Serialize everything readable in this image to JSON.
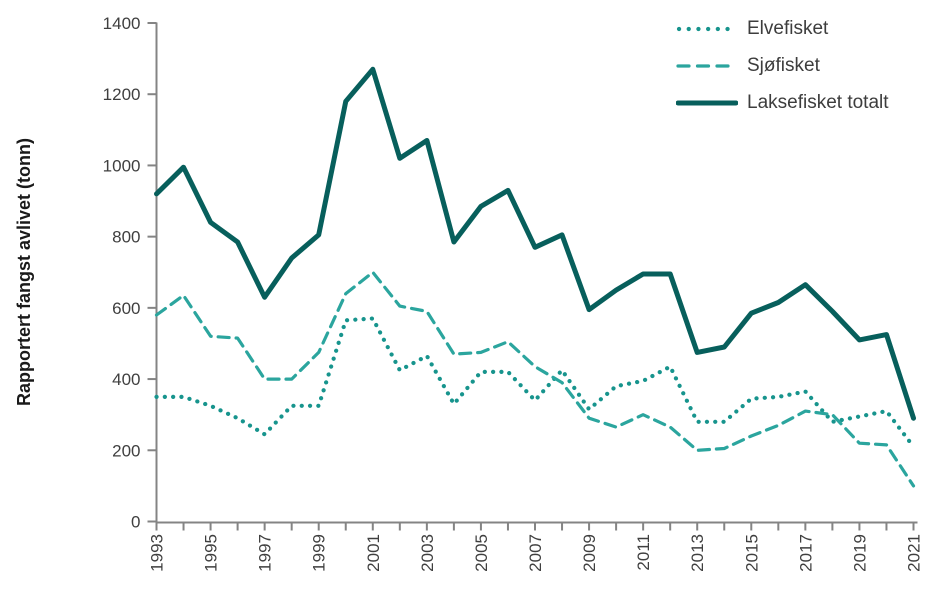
{
  "figure": {
    "y_axis_title": "Rapportert fangst avlivet (tonn)"
  },
  "colors": {
    "elvefisket": "#17948d",
    "sjofisket": "#2ba59e",
    "total": "#075f5c",
    "axis": "#848484",
    "tick_text": "#3f3f3f",
    "legend_text": "#3d3d3d"
  },
  "chart_data": {
    "type": "line",
    "title": "",
    "xlabel": "",
    "ylabel": "Rapportert fangst avlivet (tonn)",
    "ylim": [
      0,
      1400
    ],
    "y_ticks": [
      0,
      200,
      400,
      600,
      800,
      1000,
      1200,
      1400
    ],
    "grid": false,
    "legend_position": "top-right",
    "x": [
      1993,
      1994,
      1995,
      1996,
      1997,
      1998,
      1999,
      2000,
      2001,
      2002,
      2003,
      2004,
      2005,
      2006,
      2007,
      2008,
      2009,
      2010,
      2011,
      2012,
      2013,
      2014,
      2015,
      2016,
      2017,
      2018,
      2019,
      2020,
      2021
    ],
    "x_tick_labels": [
      "1993",
      "1995",
      "1997",
      "1999",
      "2001",
      "2003",
      "2005",
      "2007",
      "2009",
      "2011",
      "2013",
      "2015",
      "2017",
      "2019",
      "2021"
    ],
    "series": [
      {
        "name": "Elvefisket",
        "style": "dotted",
        "color": "#17948d",
        "values": [
          350,
          350,
          325,
          290,
          245,
          325,
          325,
          565,
          570,
          425,
          465,
          330,
          420,
          420,
          340,
          425,
          315,
          380,
          395,
          435,
          280,
          280,
          345,
          350,
          365,
          280,
          295,
          310,
          210
        ]
      },
      {
        "name": "Sjøfisket",
        "style": "dashed",
        "color": "#2ba59e",
        "values": [
          580,
          635,
          520,
          515,
          400,
          400,
          475,
          640,
          700,
          605,
          590,
          470,
          475,
          505,
          435,
          390,
          290,
          265,
          300,
          265,
          200,
          205,
          240,
          270,
          310,
          300,
          220,
          215,
          100
        ]
      },
      {
        "name": "Laksefisket totalt",
        "style": "solid",
        "color": "#075f5c",
        "values": [
          920,
          995,
          840,
          785,
          630,
          740,
          805,
          1180,
          1270,
          1020,
          1070,
          785,
          885,
          930,
          770,
          805,
          595,
          650,
          695,
          695,
          475,
          490,
          585,
          615,
          665,
          590,
          510,
          525,
          290
        ]
      }
    ]
  }
}
